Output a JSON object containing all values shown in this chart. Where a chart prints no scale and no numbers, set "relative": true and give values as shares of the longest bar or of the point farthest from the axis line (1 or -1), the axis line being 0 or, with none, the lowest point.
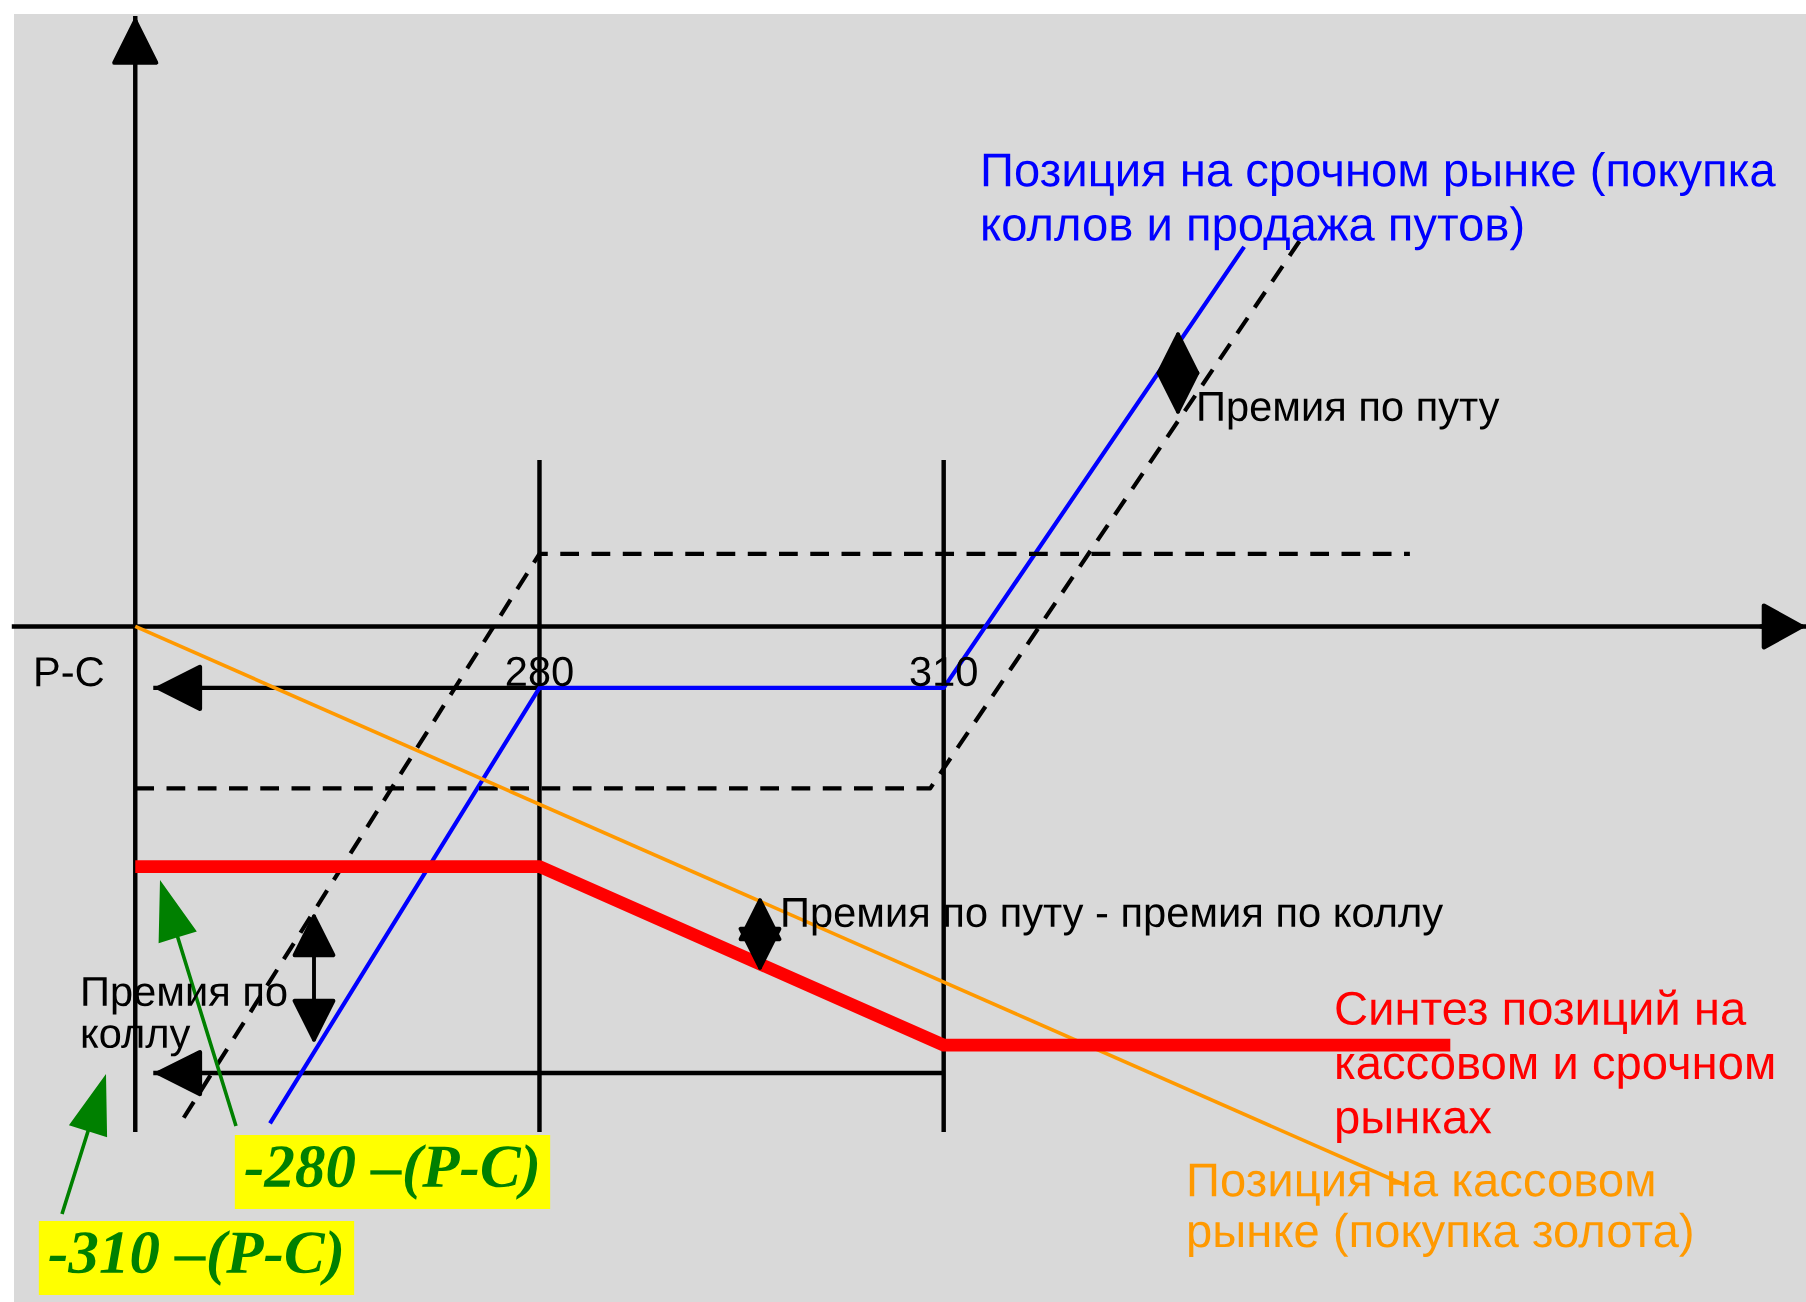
{
  "chart_data": {
    "type": "line",
    "relative": true,
    "xlim": [
      241,
      374
    ],
    "xticks": [
      280,
      310
    ],
    "tick_labels": "x",
    "series": [
      {
        "name": "Позиция на срочном рынке (покупка\nколлов и продажа путов)",
        "color": "#0000ff",
        "x": [
          260,
          280,
          310,
          332.3
        ],
        "values": [
          -0.89,
          -0.11,
          -0.11,
          0.68
        ]
      },
      {
        "color": "#000000",
        "line_style": "dashed",
        "x": [
          253.6,
          280,
          344.6
        ],
        "values": [
          -0.88,
          0.13,
          0.13
        ]
      },
      {
        "color": "#000000",
        "line_style": "dashed",
        "x": [
          250,
          309,
          336.4
        ],
        "values": [
          -0.29,
          -0.29,
          0.69
        ]
      },
      {
        "name": "Позиция на кассовом\nрынке (покупка золота)",
        "color": "#ff9900",
        "x": [
          250,
          344.2
        ],
        "values": [
          0,
          -1
        ]
      },
      {
        "name": "Синтез позиций на\nкассовом и срочном\nрынках",
        "color": "#ff0000",
        "x": [
          250,
          280,
          310,
          347.6
        ],
        "values": [
          -0.43,
          -0.43,
          -0.75,
          -0.75
        ]
      }
    ],
    "ref_lines": [
      {
        "axis": "x",
        "value": 250,
        "color": "#000000"
      },
      {
        "axis": "x",
        "value": 280,
        "color": "#000000"
      },
      {
        "axis": "x",
        "value": 310,
        "color": "#000000"
      },
      {
        "axis": "y",
        "value": -0.11,
        "label": "P-C",
        "color": "#000000"
      },
      {
        "axis": "y",
        "value": -0.8,
        "color": "#000000"
      }
    ],
    "annotations": [
      "Премия по путу",
      "Премия по путу - премия по коллу",
      "Премия по\nколлу",
      "-280 –(P-C)",
      "-310 –(P-C)"
    ]
  }
}
